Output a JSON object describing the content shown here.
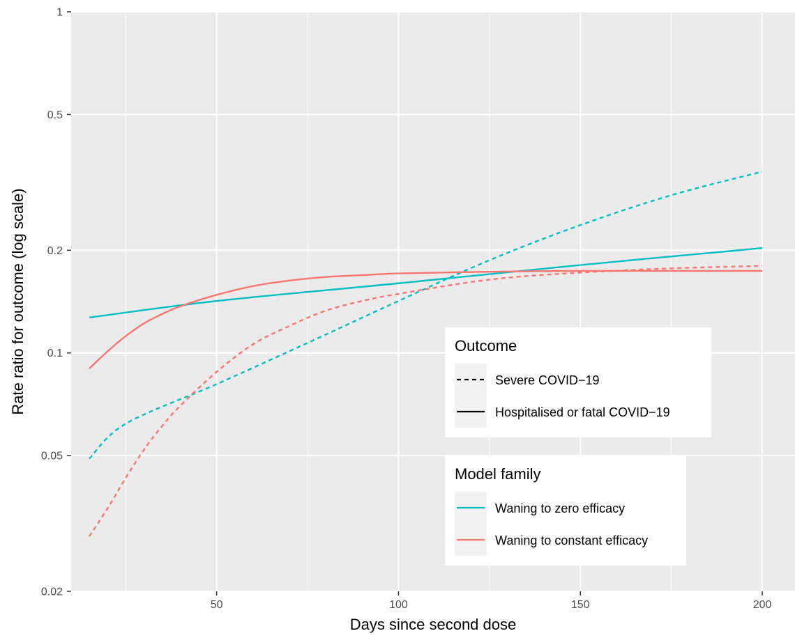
{
  "chart_data": {
    "type": "line",
    "xlabel": "Days since second dose",
    "ylabel": "Rate ratio for outcome (log scale)",
    "xlim": [
      10,
      209
    ],
    "ylim": [
      0.02,
      1
    ],
    "y_scale": "log",
    "x_ticks": [
      50,
      100,
      150,
      200
    ],
    "x_minor_ticks": [
      25,
      75,
      125,
      175
    ],
    "y_ticks": [
      {
        "value": 0.02,
        "label": "0.02"
      },
      {
        "value": 0.05,
        "label": "0.05"
      },
      {
        "value": 0.1,
        "label": "0.1"
      },
      {
        "value": 0.2,
        "label": "0.2"
      },
      {
        "value": 0.5,
        "label": "0.5"
      },
      {
        "value": 1,
        "label": "1"
      }
    ],
    "grid": true,
    "colors": {
      "panel": "#ebebeb",
      "grid": "#ffffff",
      "zero_efficacy": "#00bfc4",
      "constant_efficacy": "#f8766d"
    },
    "series": [
      {
        "outcome": "Severe COVID−19",
        "model": "Waning to zero efficacy",
        "linetype": "dashed",
        "color": "#00bfc4",
        "x": [
          15,
          25,
          50,
          75,
          100,
          125,
          150,
          175,
          200
        ],
        "y": [
          0.049,
          0.062,
          0.081,
          0.107,
          0.142,
          0.187,
          0.237,
          0.29,
          0.34
        ]
      },
      {
        "outcome": "Severe COVID−19",
        "model": "Waning to constant efficacy",
        "linetype": "dashed",
        "color": "#f8766d",
        "x": [
          15,
          20,
          25,
          30,
          35,
          40,
          50,
          60,
          70,
          80,
          90,
          100,
          125,
          150,
          175,
          200
        ],
        "y": [
          0.029,
          0.035,
          0.043,
          0.052,
          0.061,
          0.07,
          0.088,
          0.106,
          0.12,
          0.133,
          0.142,
          0.149,
          0.164,
          0.172,
          0.177,
          0.18
        ]
      },
      {
        "outcome": "Hospitalised or fatal COVID−19",
        "model": "Waning to zero efficacy",
        "linetype": "solid",
        "color": "#00bfc4",
        "x": [
          15,
          50,
          100,
          150,
          200
        ],
        "y": [
          0.127,
          0.142,
          0.16,
          0.181,
          0.203
        ]
      },
      {
        "outcome": "Hospitalised or fatal COVID−19",
        "model": "Waning to constant efficacy",
        "linetype": "solid",
        "color": "#f8766d",
        "x": [
          15,
          20,
          25,
          30,
          35,
          40,
          50,
          60,
          70,
          80,
          90,
          100,
          125,
          150,
          175,
          200
        ],
        "y": [
          0.09,
          0.101,
          0.112,
          0.122,
          0.13,
          0.137,
          0.148,
          0.157,
          0.163,
          0.167,
          0.169,
          0.171,
          0.173,
          0.174,
          0.174,
          0.174
        ]
      }
    ],
    "legends": [
      {
        "title": "Outcome",
        "items": [
          {
            "label": "Severe COVID−19",
            "linetype": "dashed",
            "color": "#000000"
          },
          {
            "label": "Hospitalised or fatal COVID−19",
            "linetype": "solid",
            "color": "#000000"
          }
        ]
      },
      {
        "title": "Model family",
        "items": [
          {
            "label": "Waning to zero efficacy",
            "linetype": "solid",
            "color": "#00bfc4"
          },
          {
            "label": "Waning to constant efficacy",
            "linetype": "solid",
            "color": "#f8766d"
          }
        ]
      }
    ],
    "legend_position": "inside, right"
  }
}
